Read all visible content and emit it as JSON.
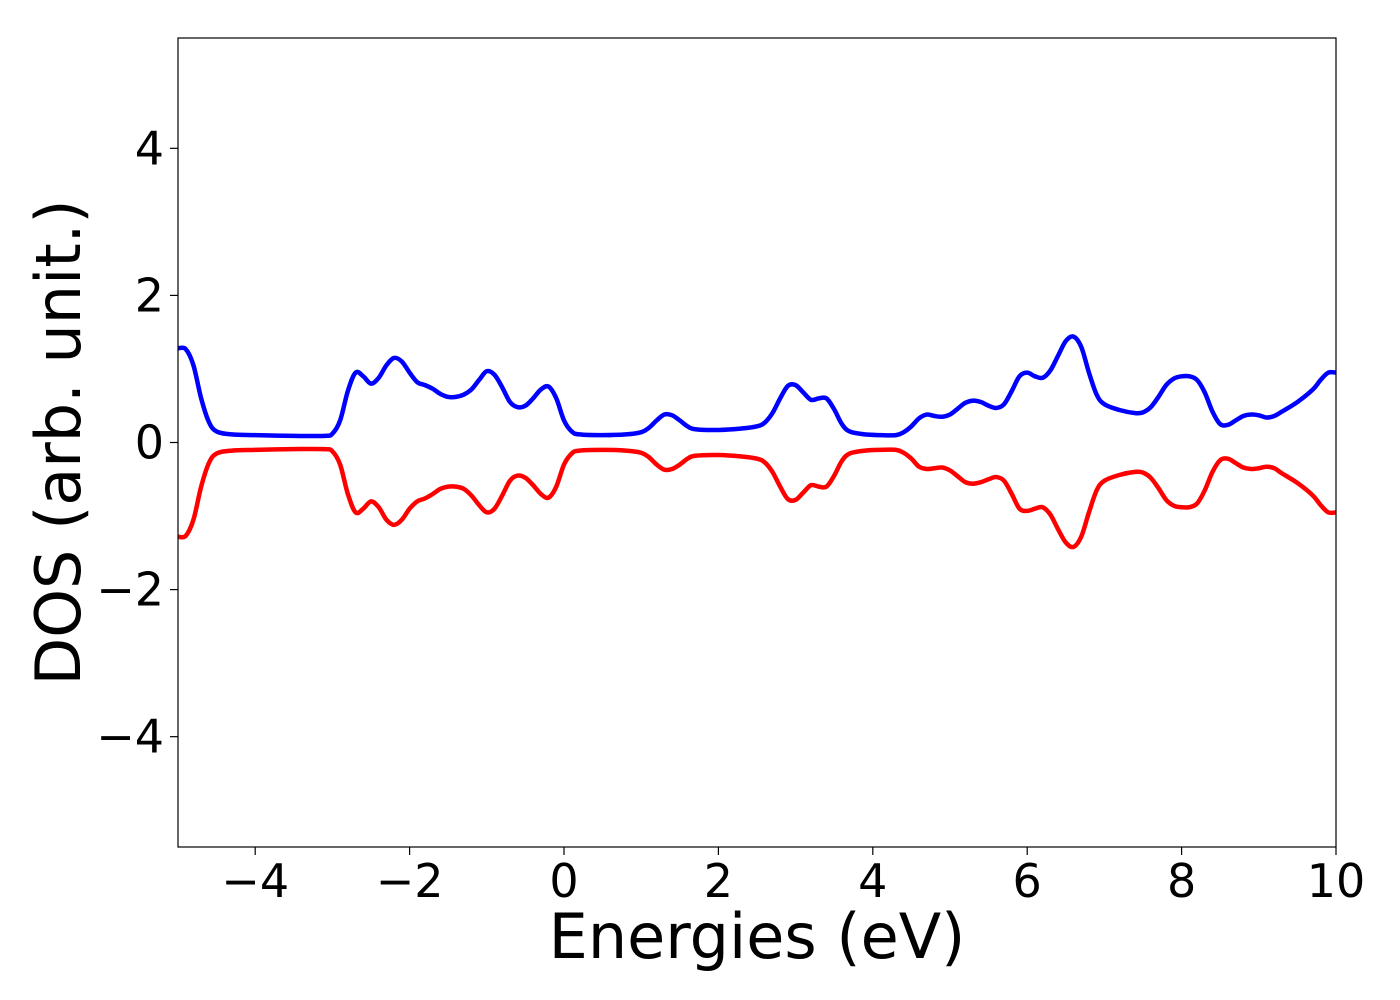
{
  "chart_data": {
    "type": "line",
    "title": "",
    "xlabel": "Energies (eV)",
    "ylabel": "DOS (arb. unit.)",
    "xlim": [
      -5,
      10
    ],
    "ylim": [
      -5.5,
      5.5
    ],
    "grid": false,
    "x_ticks": [
      -4,
      -2,
      0,
      2,
      4,
      6,
      8,
      10
    ],
    "x_tick_labels": [
      "−4",
      "−2",
      "0",
      "2",
      "4",
      "6",
      "8",
      "10"
    ],
    "y_ticks": [
      -4,
      -2,
      0,
      2,
      4
    ],
    "y_tick_labels": [
      "−4",
      "−2",
      "0",
      "2",
      "4"
    ],
    "series": [
      {
        "color": "#0000ff",
        "points": [
          [
            -5.0,
            1.28
          ],
          [
            -4.9,
            1.27
          ],
          [
            -4.8,
            1.05
          ],
          [
            -4.7,
            0.6
          ],
          [
            -4.6,
            0.28
          ],
          [
            -4.5,
            0.15
          ],
          [
            -4.3,
            0.11
          ],
          [
            -4.0,
            0.1
          ],
          [
            -3.5,
            0.09
          ],
          [
            -3.1,
            0.09
          ],
          [
            -3.0,
            0.12
          ],
          [
            -2.9,
            0.3
          ],
          [
            -2.8,
            0.7
          ],
          [
            -2.7,
            0.95
          ],
          [
            -2.6,
            0.9
          ],
          [
            -2.5,
            0.8
          ],
          [
            -2.4,
            0.88
          ],
          [
            -2.3,
            1.05
          ],
          [
            -2.2,
            1.15
          ],
          [
            -2.1,
            1.1
          ],
          [
            -2.0,
            0.95
          ],
          [
            -1.9,
            0.82
          ],
          [
            -1.8,
            0.78
          ],
          [
            -1.7,
            0.73
          ],
          [
            -1.6,
            0.66
          ],
          [
            -1.5,
            0.62
          ],
          [
            -1.4,
            0.62
          ],
          [
            -1.3,
            0.65
          ],
          [
            -1.2,
            0.72
          ],
          [
            -1.1,
            0.85
          ],
          [
            -1.0,
            0.97
          ],
          [
            -0.9,
            0.92
          ],
          [
            -0.8,
            0.75
          ],
          [
            -0.7,
            0.55
          ],
          [
            -0.6,
            0.48
          ],
          [
            -0.5,
            0.5
          ],
          [
            -0.4,
            0.6
          ],
          [
            -0.3,
            0.72
          ],
          [
            -0.2,
            0.76
          ],
          [
            -0.1,
            0.6
          ],
          [
            0.0,
            0.3
          ],
          [
            0.1,
            0.15
          ],
          [
            0.2,
            0.11
          ],
          [
            0.5,
            0.1
          ],
          [
            0.8,
            0.11
          ],
          [
            1.0,
            0.14
          ],
          [
            1.1,
            0.2
          ],
          [
            1.2,
            0.3
          ],
          [
            1.3,
            0.38
          ],
          [
            1.4,
            0.37
          ],
          [
            1.5,
            0.3
          ],
          [
            1.6,
            0.22
          ],
          [
            1.7,
            0.18
          ],
          [
            2.0,
            0.17
          ],
          [
            2.3,
            0.19
          ],
          [
            2.5,
            0.22
          ],
          [
            2.6,
            0.27
          ],
          [
            2.7,
            0.4
          ],
          [
            2.8,
            0.6
          ],
          [
            2.9,
            0.77
          ],
          [
            3.0,
            0.78
          ],
          [
            3.1,
            0.68
          ],
          [
            3.2,
            0.58
          ],
          [
            3.3,
            0.6
          ],
          [
            3.4,
            0.6
          ],
          [
            3.5,
            0.45
          ],
          [
            3.6,
            0.25
          ],
          [
            3.7,
            0.15
          ],
          [
            3.9,
            0.11
          ],
          [
            4.1,
            0.1
          ],
          [
            4.3,
            0.1
          ],
          [
            4.4,
            0.14
          ],
          [
            4.5,
            0.22
          ],
          [
            4.6,
            0.33
          ],
          [
            4.7,
            0.38
          ],
          [
            4.8,
            0.36
          ],
          [
            4.9,
            0.35
          ],
          [
            5.0,
            0.38
          ],
          [
            5.1,
            0.46
          ],
          [
            5.2,
            0.54
          ],
          [
            5.3,
            0.57
          ],
          [
            5.4,
            0.55
          ],
          [
            5.5,
            0.5
          ],
          [
            5.6,
            0.47
          ],
          [
            5.7,
            0.52
          ],
          [
            5.8,
            0.7
          ],
          [
            5.9,
            0.9
          ],
          [
            6.0,
            0.95
          ],
          [
            6.1,
            0.9
          ],
          [
            6.2,
            0.88
          ],
          [
            6.3,
            0.98
          ],
          [
            6.4,
            1.18
          ],
          [
            6.5,
            1.38
          ],
          [
            6.6,
            1.44
          ],
          [
            6.7,
            1.3
          ],
          [
            6.8,
            0.95
          ],
          [
            6.9,
            0.65
          ],
          [
            7.0,
            0.52
          ],
          [
            7.2,
            0.44
          ],
          [
            7.4,
            0.4
          ],
          [
            7.5,
            0.41
          ],
          [
            7.6,
            0.48
          ],
          [
            7.7,
            0.62
          ],
          [
            7.8,
            0.78
          ],
          [
            7.9,
            0.87
          ],
          [
            8.0,
            0.9
          ],
          [
            8.1,
            0.9
          ],
          [
            8.2,
            0.85
          ],
          [
            8.3,
            0.68
          ],
          [
            8.4,
            0.42
          ],
          [
            8.5,
            0.25
          ],
          [
            8.6,
            0.24
          ],
          [
            8.7,
            0.3
          ],
          [
            8.8,
            0.36
          ],
          [
            8.9,
            0.38
          ],
          [
            9.0,
            0.37
          ],
          [
            9.1,
            0.34
          ],
          [
            9.2,
            0.36
          ],
          [
            9.3,
            0.42
          ],
          [
            9.5,
            0.55
          ],
          [
            9.7,
            0.72
          ],
          [
            9.8,
            0.85
          ],
          [
            9.9,
            0.95
          ],
          [
            10.0,
            0.95
          ]
        ]
      },
      {
        "color": "#ff0000",
        "points": [
          [
            -5.0,
            -1.28
          ],
          [
            -4.9,
            -1.27
          ],
          [
            -4.8,
            -1.05
          ],
          [
            -4.7,
            -0.6
          ],
          [
            -4.6,
            -0.28
          ],
          [
            -4.5,
            -0.15
          ],
          [
            -4.3,
            -0.11
          ],
          [
            -4.0,
            -0.1
          ],
          [
            -3.5,
            -0.09
          ],
          [
            -3.1,
            -0.09
          ],
          [
            -3.0,
            -0.12
          ],
          [
            -2.9,
            -0.3
          ],
          [
            -2.8,
            -0.7
          ],
          [
            -2.7,
            -0.95
          ],
          [
            -2.6,
            -0.9
          ],
          [
            -2.5,
            -0.8
          ],
          [
            -2.4,
            -0.88
          ],
          [
            -2.3,
            -1.05
          ],
          [
            -2.2,
            -1.12
          ],
          [
            -2.1,
            -1.05
          ],
          [
            -2.0,
            -0.9
          ],
          [
            -1.9,
            -0.8
          ],
          [
            -1.8,
            -0.76
          ],
          [
            -1.7,
            -0.7
          ],
          [
            -1.6,
            -0.63
          ],
          [
            -1.5,
            -0.6
          ],
          [
            -1.4,
            -0.6
          ],
          [
            -1.3,
            -0.63
          ],
          [
            -1.2,
            -0.72
          ],
          [
            -1.1,
            -0.85
          ],
          [
            -1.0,
            -0.95
          ],
          [
            -0.9,
            -0.9
          ],
          [
            -0.8,
            -0.72
          ],
          [
            -0.7,
            -0.52
          ],
          [
            -0.6,
            -0.45
          ],
          [
            -0.5,
            -0.48
          ],
          [
            -0.4,
            -0.58
          ],
          [
            -0.3,
            -0.7
          ],
          [
            -0.2,
            -0.75
          ],
          [
            -0.1,
            -0.6
          ],
          [
            0.0,
            -0.3
          ],
          [
            0.1,
            -0.15
          ],
          [
            0.2,
            -0.11
          ],
          [
            0.5,
            -0.1
          ],
          [
            0.8,
            -0.11
          ],
          [
            1.0,
            -0.14
          ],
          [
            1.1,
            -0.2
          ],
          [
            1.2,
            -0.3
          ],
          [
            1.3,
            -0.37
          ],
          [
            1.4,
            -0.36
          ],
          [
            1.5,
            -0.3
          ],
          [
            1.6,
            -0.22
          ],
          [
            1.7,
            -0.18
          ],
          [
            2.0,
            -0.17
          ],
          [
            2.3,
            -0.19
          ],
          [
            2.5,
            -0.22
          ],
          [
            2.6,
            -0.27
          ],
          [
            2.7,
            -0.4
          ],
          [
            2.8,
            -0.6
          ],
          [
            2.9,
            -0.77
          ],
          [
            3.0,
            -0.78
          ],
          [
            3.1,
            -0.68
          ],
          [
            3.2,
            -0.58
          ],
          [
            3.3,
            -0.6
          ],
          [
            3.4,
            -0.6
          ],
          [
            3.5,
            -0.45
          ],
          [
            3.6,
            -0.25
          ],
          [
            3.7,
            -0.15
          ],
          [
            3.9,
            -0.11
          ],
          [
            4.1,
            -0.1
          ],
          [
            4.3,
            -0.1
          ],
          [
            4.4,
            -0.14
          ],
          [
            4.5,
            -0.22
          ],
          [
            4.6,
            -0.33
          ],
          [
            4.7,
            -0.36
          ],
          [
            4.8,
            -0.35
          ],
          [
            4.9,
            -0.34
          ],
          [
            5.0,
            -0.38
          ],
          [
            5.1,
            -0.46
          ],
          [
            5.2,
            -0.54
          ],
          [
            5.3,
            -0.56
          ],
          [
            5.4,
            -0.54
          ],
          [
            5.5,
            -0.5
          ],
          [
            5.6,
            -0.47
          ],
          [
            5.7,
            -0.52
          ],
          [
            5.8,
            -0.7
          ],
          [
            5.9,
            -0.9
          ],
          [
            6.0,
            -0.93
          ],
          [
            6.1,
            -0.9
          ],
          [
            6.2,
            -0.88
          ],
          [
            6.3,
            -0.98
          ],
          [
            6.4,
            -1.18
          ],
          [
            6.5,
            -1.36
          ],
          [
            6.6,
            -1.42
          ],
          [
            6.7,
            -1.28
          ],
          [
            6.8,
            -0.95
          ],
          [
            6.9,
            -0.65
          ],
          [
            7.0,
            -0.52
          ],
          [
            7.2,
            -0.44
          ],
          [
            7.4,
            -0.4
          ],
          [
            7.5,
            -0.41
          ],
          [
            7.6,
            -0.48
          ],
          [
            7.7,
            -0.62
          ],
          [
            7.8,
            -0.78
          ],
          [
            7.9,
            -0.86
          ],
          [
            8.0,
            -0.88
          ],
          [
            8.1,
            -0.88
          ],
          [
            8.2,
            -0.83
          ],
          [
            8.3,
            -0.65
          ],
          [
            8.4,
            -0.4
          ],
          [
            8.5,
            -0.24
          ],
          [
            8.6,
            -0.22
          ],
          [
            8.7,
            -0.28
          ],
          [
            8.8,
            -0.34
          ],
          [
            8.9,
            -0.36
          ],
          [
            9.0,
            -0.35
          ],
          [
            9.1,
            -0.33
          ],
          [
            9.2,
            -0.35
          ],
          [
            9.3,
            -0.42
          ],
          [
            9.5,
            -0.55
          ],
          [
            9.7,
            -0.72
          ],
          [
            9.8,
            -0.85
          ],
          [
            9.9,
            -0.95
          ],
          [
            10.0,
            -0.95
          ]
        ]
      }
    ]
  }
}
